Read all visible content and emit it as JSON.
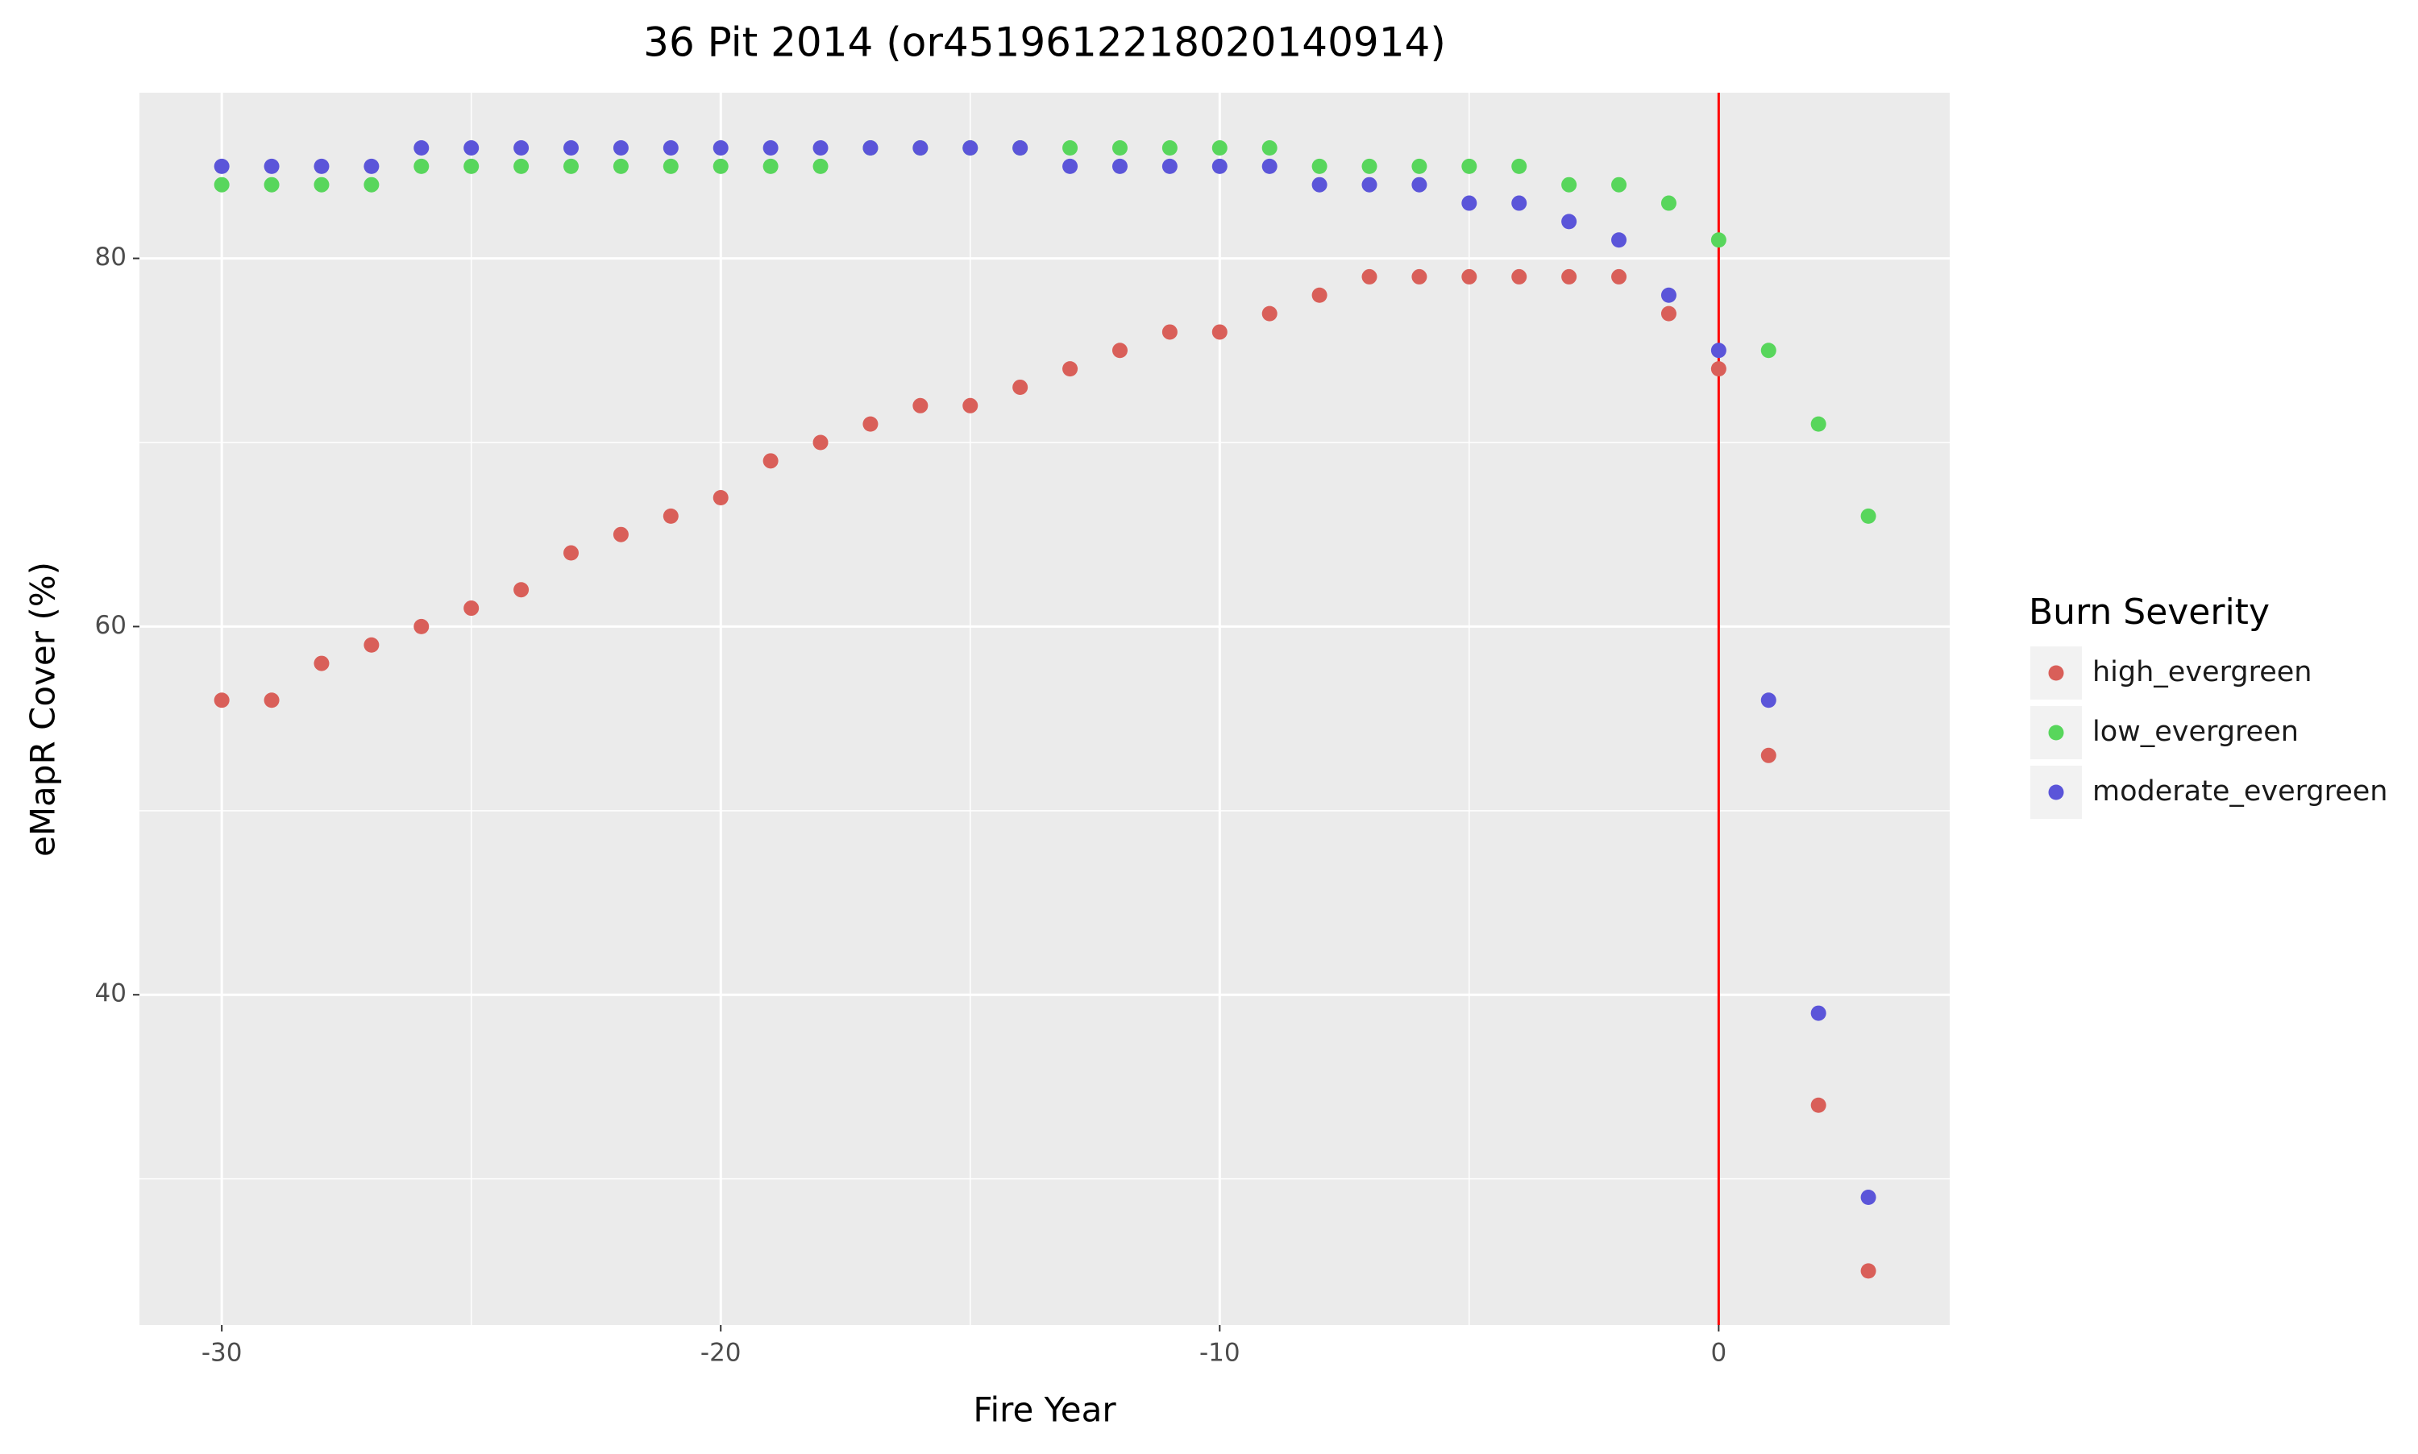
{
  "chart_data": {
    "type": "scatter",
    "title": "36 Pit 2014 (or4519612218020140914)",
    "xlabel": "Fire Year",
    "ylabel": "eMapR Cover (%)",
    "x": [
      -30,
      -29,
      -28,
      -27,
      -26,
      -25,
      -24,
      -23,
      -22,
      -21,
      -20,
      -19,
      -18,
      -17,
      -16,
      -15,
      -14,
      -13,
      -12,
      -11,
      -10,
      -9,
      -8,
      -7,
      -6,
      -5,
      -4,
      -3,
      -2,
      -1,
      0,
      1,
      2,
      3
    ],
    "series": [
      {
        "name": "high_evergreen",
        "color": "#d95f59",
        "values": [
          56,
          56,
          58,
          59,
          60,
          61,
          62,
          64,
          65,
          66,
          67,
          69,
          70,
          71,
          72,
          72,
          73,
          74,
          75,
          76,
          76,
          77,
          78,
          79,
          79,
          79,
          79,
          79,
          79,
          77,
          74,
          53,
          34,
          25
        ]
      },
      {
        "name": "low_evergreen",
        "color": "#58d65c",
        "values": [
          84,
          84,
          84,
          84,
          85,
          85,
          85,
          85,
          85,
          85,
          85,
          85,
          85,
          86,
          86,
          86,
          86,
          86,
          86,
          86,
          86,
          86,
          85,
          85,
          85,
          85,
          85,
          84,
          84,
          83,
          81,
          75,
          71,
          66
        ]
      },
      {
        "name": "moderate_evergreen",
        "color": "#5b55d9",
        "values": [
          85,
          85,
          85,
          85,
          86,
          86,
          86,
          86,
          86,
          86,
          86,
          86,
          86,
          86,
          86,
          86,
          86,
          85,
          85,
          85,
          85,
          85,
          84,
          84,
          84,
          83,
          83,
          82,
          81,
          78,
          75,
          56,
          39,
          29
        ]
      }
    ],
    "xlim": [
      -31.65,
      4.63
    ],
    "ylim": [
      22.06,
      89.0
    ],
    "xticks": [
      -30,
      -20,
      -10,
      0
    ],
    "yticks": [
      40,
      60,
      80
    ],
    "xminorticks": [
      -25,
      -15,
      -5
    ],
    "yminorticks": [
      30,
      50,
      70
    ],
    "grid": true,
    "vline": {
      "x": 0,
      "color": "#ff0000"
    },
    "legend_title": "Burn Severity",
    "legend": "right"
  }
}
